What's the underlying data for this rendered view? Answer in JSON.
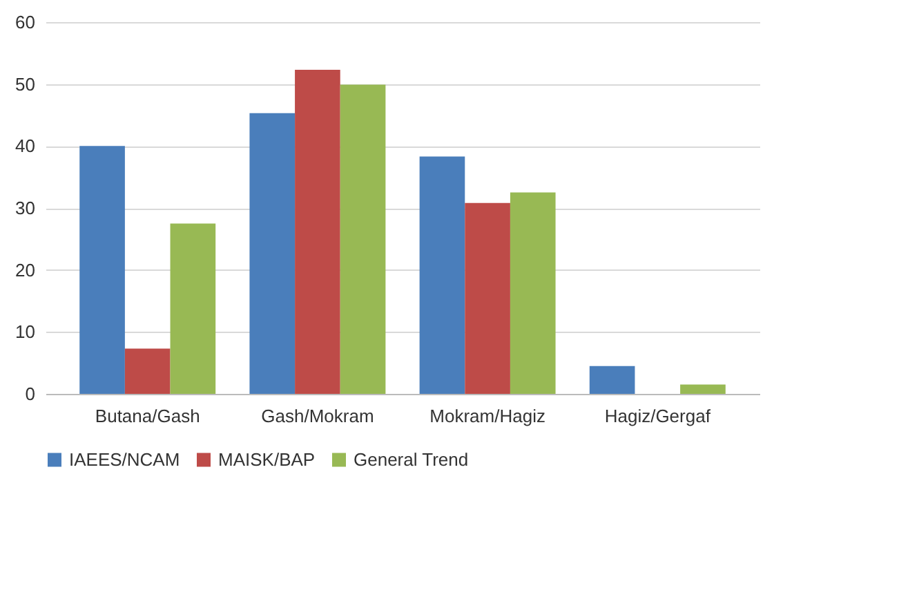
{
  "chart_data": {
    "type": "bar",
    "categories": [
      "Butana/Gash",
      "Gash/Mokram",
      "Mokram/Hagiz",
      "Hagiz/Gergaf"
    ],
    "series": [
      {
        "name": "IAEES/NCAM",
        "color": "#4a7ebb",
        "values": [
          40.0,
          45.3,
          38.3,
          4.5
        ]
      },
      {
        "name": "MAISK/BAP",
        "color": "#be4b48",
        "values": [
          7.3,
          52.3,
          30.8,
          0
        ]
      },
      {
        "name": "General Trend",
        "color": "#98b954",
        "values": [
          27.5,
          49.9,
          32.5,
          1.5
        ]
      }
    ],
    "ylim": [
      0,
      60
    ],
    "yticks": [
      0,
      10,
      20,
      30,
      40,
      50,
      60
    ],
    "grid": "y",
    "legend": "bottom"
  }
}
